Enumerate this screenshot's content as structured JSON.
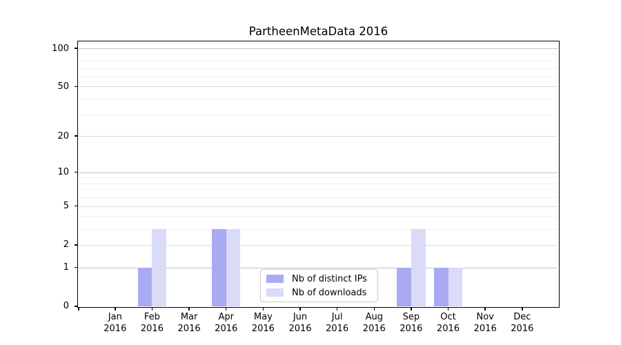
{
  "chart_data": {
    "type": "bar",
    "title": "PartheenMetaData 2016",
    "categories": [
      "Jan 2016",
      "Feb 2016",
      "Mar 2016",
      "Apr 2016",
      "May 2016",
      "Jun 2016",
      "Jul 2016",
      "Aug 2016",
      "Sep 2016",
      "Oct 2016",
      "Nov 2016",
      "Dec 2016"
    ],
    "series": [
      {
        "name": "Nb of distinct IPs",
        "color": "#a9abf2",
        "values": [
          0,
          1,
          0,
          3,
          0,
          0,
          0,
          0,
          1,
          1,
          0,
          0
        ]
      },
      {
        "name": "Nb of downloads",
        "color": "#d9dbf8",
        "values": [
          0,
          3,
          0,
          3,
          0,
          0,
          0,
          0,
          3,
          1,
          0,
          0
        ]
      }
    ],
    "xlabel": "",
    "ylabel": "",
    "y_scale": "log1p",
    "ylim": [
      0,
      113
    ],
    "y_ticks": [
      0,
      1,
      2,
      5,
      10,
      20,
      50,
      100
    ],
    "y_minor_gridlines": [
      3,
      4,
      6,
      7,
      8,
      9,
      30,
      40,
      60,
      70,
      80,
      90,
      110
    ],
    "grid": "on",
    "legend_position": "lower center"
  },
  "colors": {
    "grid_major": "#c2c2c2",
    "grid_mid": "#dcdcdc",
    "grid_minor": "#f0f0f0",
    "spine": "#000000",
    "text": "#000000",
    "legend_border": "#c9c9c9",
    "background": "#ffffff"
  }
}
